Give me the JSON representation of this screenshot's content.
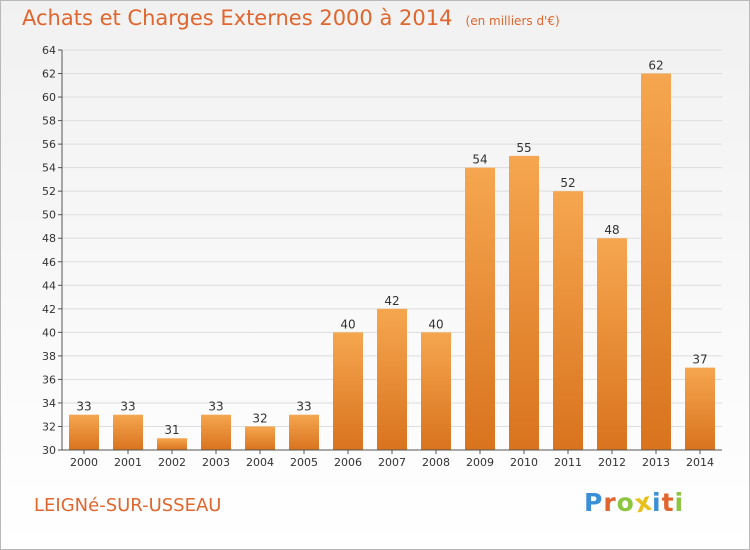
{
  "header": {
    "title": "Achats et Charges Externes 2000 à 2014",
    "unit": "(en milliers d'€)"
  },
  "footer": {
    "commune": "LEIGNé-SUR-USSEAU",
    "logo_letters": [
      {
        "char": "P",
        "color": "#3a8fd6"
      },
      {
        "char": "r",
        "color": "#e0662d"
      },
      {
        "char": "o",
        "color": "#8cc63f"
      },
      {
        "char": "x",
        "color": "#e8c21a"
      },
      {
        "char": "i",
        "color": "#3a8fd6"
      },
      {
        "char": "t",
        "color": "#e0662d"
      },
      {
        "char": "i",
        "color": "#8cc63f"
      }
    ]
  },
  "colors": {
    "title": "#e0662d",
    "bar_light": "#f6a650",
    "bar_dark": "#d9731e",
    "grid": "#dddddd",
    "axis": "#555555"
  },
  "chart_data": {
    "type": "bar",
    "categories": [
      "2000",
      "2001",
      "2002",
      "2003",
      "2004",
      "2005",
      "2006",
      "2007",
      "2008",
      "2009",
      "2010",
      "2011",
      "2012",
      "2013",
      "2014"
    ],
    "values": [
      33,
      33,
      31,
      33,
      32,
      33,
      40,
      42,
      40,
      54,
      55,
      52,
      48,
      62,
      37
    ],
    "ylim": [
      30,
      64
    ],
    "yticks": [
      30,
      32,
      34,
      36,
      38,
      40,
      42,
      44,
      46,
      48,
      50,
      52,
      54,
      56,
      58,
      60,
      62,
      64
    ],
    "grid": true,
    "xlabel": "",
    "ylabel": ""
  }
}
